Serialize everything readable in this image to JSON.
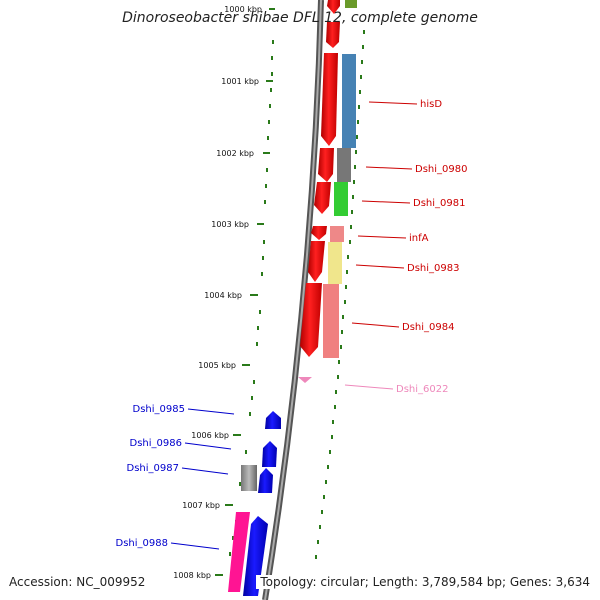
{
  "title": "Dinoroseobacter shibae DFL 12, complete genome",
  "footer": {
    "accession": "Accession: NC_009952",
    "summary": "Topology: circular; Length: 3,789,584 bp; Genes: 3,634"
  },
  "ruler": {
    "ticks": [
      "1000 kbp",
      "1001 kbp",
      "1002 kbp",
      "1003 kbp",
      "1004 kbp",
      "1005 kbp",
      "1006 kbp",
      "1007 kbp",
      "1008 kbp"
    ]
  },
  "genes": {
    "right": [
      {
        "name": "hisD",
        "color": "#cc0000"
      },
      {
        "name": "Dshi_0980",
        "color": "#cc0000"
      },
      {
        "name": "Dshi_0981",
        "color": "#cc0000"
      },
      {
        "name": "infA",
        "color": "#cc0000"
      },
      {
        "name": "Dshi_0983",
        "color": "#cc0000"
      },
      {
        "name": "Dshi_0984",
        "color": "#cc0000"
      },
      {
        "name": "Dshi_6022",
        "color": "#ee88bb"
      }
    ],
    "left": [
      {
        "name": "Dshi_0985",
        "color": "#0000cc"
      },
      {
        "name": "Dshi_0986",
        "color": "#0000cc"
      },
      {
        "name": "Dshi_0987",
        "color": "#0000cc"
      },
      {
        "name": "Dshi_0988",
        "color": "#0000cc"
      }
    ]
  },
  "colors": {
    "forward_strand": "#ff0000",
    "reverse_strand": "#0000ff",
    "backbone": "#888888",
    "tick_green": "#2a7a1a"
  }
}
